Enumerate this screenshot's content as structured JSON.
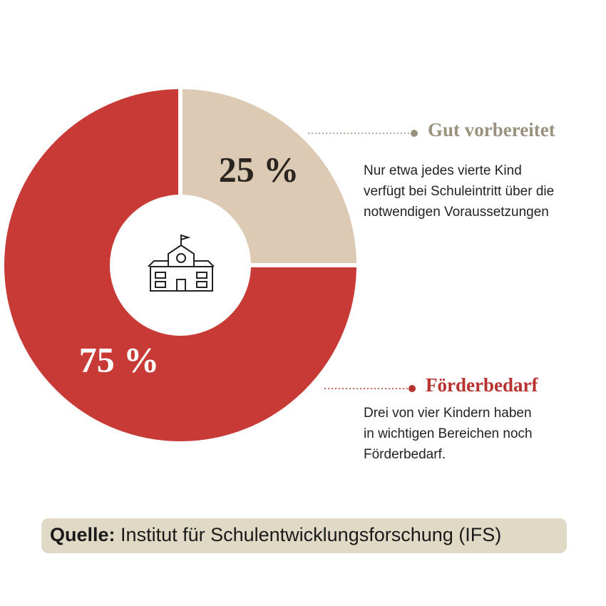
{
  "chart_data": {
    "type": "pie",
    "categories": [
      "Gut vorbereitet",
      "Förderbedarf"
    ],
    "values": [
      25,
      75
    ],
    "value_labels": [
      "25 %",
      "75 %"
    ],
    "colors": [
      "#dccab4",
      "#c73a35"
    ],
    "descriptions": [
      [
        "Nur etwa jedes vierte Kind",
        "verfügt bei Schuleintritt über die",
        "notwendigen Voraussetzungen"
      ],
      [
        "Drei von vier Kindern haben",
        "in wichtigen Bereichen noch",
        "Förderbedarf."
      ]
    ],
    "source_label": "Quelle:",
    "source": "Institut für Schulentwicklungsforschung (IFS)"
  }
}
